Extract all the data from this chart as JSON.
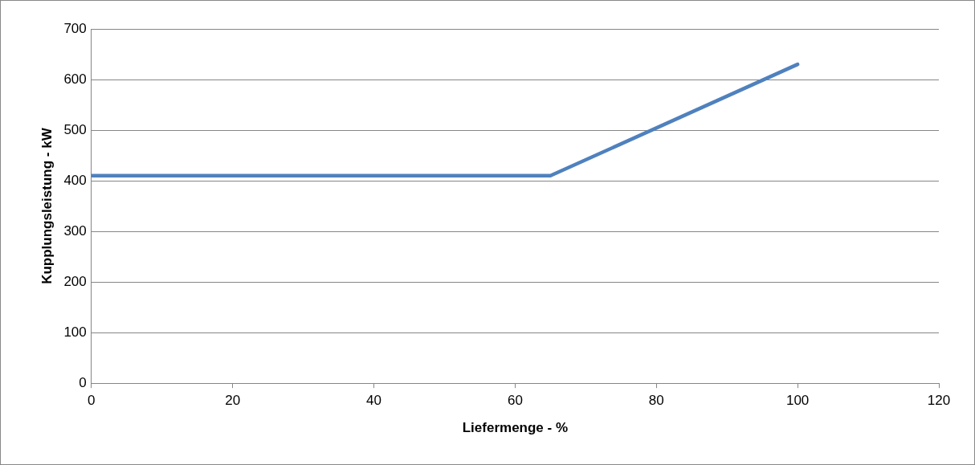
{
  "chart_data": {
    "type": "line",
    "xlabel": "Liefermenge - %",
    "ylabel": "Kupplungsleistung - kW",
    "x": [
      0,
      65,
      100
    ],
    "series": [
      {
        "color": "#4f81bd",
        "values": [
          410,
          410,
          630
        ]
      }
    ],
    "xlim": [
      0,
      120
    ],
    "xticks": [
      0,
      20,
      40,
      60,
      80,
      100,
      120
    ],
    "ylim": [
      0,
      700
    ],
    "yticks": [
      0,
      100,
      200,
      300,
      400,
      500,
      600,
      700
    ],
    "grid": "y",
    "legend": false,
    "marker": "none",
    "line_style": "solid"
  }
}
